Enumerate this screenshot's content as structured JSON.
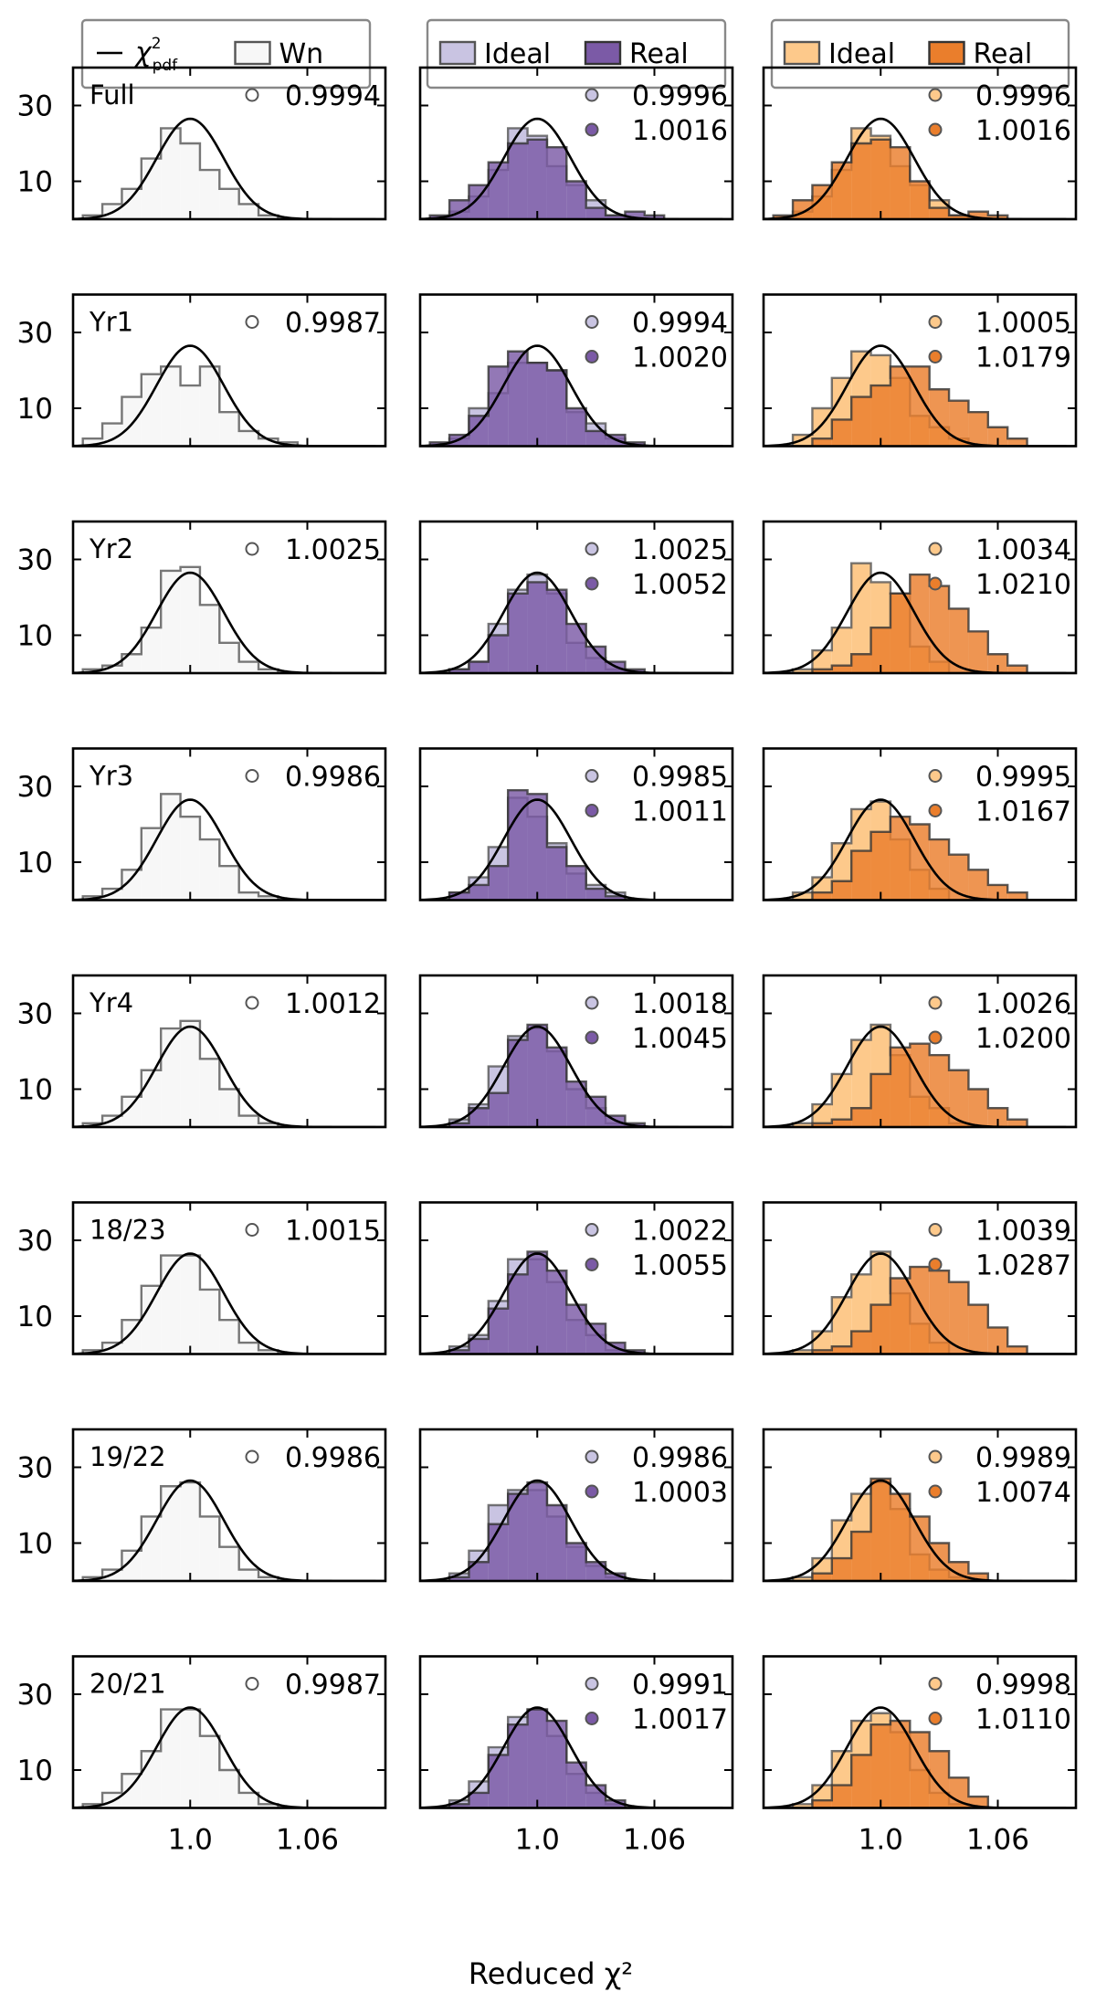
{
  "chart_data": {
    "type": "histogram-grid",
    "xlabel": "Reduced χ²",
    "xticks": [
      "1.0",
      "1.06"
    ],
    "xtick_values": [
      1.0,
      1.06
    ],
    "xlim": [
      0.94,
      1.1
    ],
    "yticks": [
      "10",
      "30"
    ],
    "ytick_values": [
      10,
      30
    ],
    "ylim": [
      0,
      40
    ],
    "bins": [
      0.95,
      0.96,
      0.97,
      0.98,
      0.99,
      1.0,
      1.01,
      1.02,
      1.03,
      1.04,
      1.05,
      1.06,
      1.07,
      1.08,
      1.09
    ],
    "legends": [
      {
        "items": [
          {
            "symbol": "line",
            "label": "χ",
            "label_sup": "2",
            "label_sub": "pdf"
          },
          {
            "symbol": "box",
            "label": "Wn",
            "fill": "#f7f7f7",
            "edge": "#555555"
          }
        ]
      },
      {
        "items": [
          {
            "symbol": "box",
            "label": "Ideal",
            "fill": "#c9c4e2",
            "edge": "#555555"
          },
          {
            "symbol": "box",
            "label": "Real",
            "fill": "#7b5aa6",
            "edge": "#333333"
          }
        ]
      },
      {
        "items": [
          {
            "symbol": "box",
            "label": "Ideal",
            "fill": "#fdc98b",
            "edge": "#555555"
          },
          {
            "symbol": "box",
            "label": "Real",
            "fill": "#ea7e2c",
            "edge": "#333333"
          }
        ]
      }
    ],
    "colors": {
      "curve": "#000000",
      "wn_fill": "#f7f7f7",
      "wn_edge": "#555555",
      "purple_ideal": "#c9c4e2",
      "purple_real": "#7b5aa6",
      "orange_ideal": "#fdc98b",
      "orange_real": "#ea7e2c",
      "wn_marker": "#ffffff"
    },
    "rows": [
      {
        "label": "Full",
        "wn": {
          "value": "0.9994",
          "counts": [
            1,
            4,
            8,
            16,
            24,
            20,
            13,
            8,
            4,
            1,
            0,
            0,
            0,
            0,
            0
          ]
        },
        "purple": {
          "ideal": {
            "value": "0.9996",
            "counts": [
              0,
              2,
              6,
              13,
              24,
              22,
              14,
              9,
              5,
              1,
              0,
              0,
              0,
              0,
              0
            ]
          },
          "real": {
            "value": "1.0016",
            "counts": [
              1,
              5,
              9,
              15,
              20,
              21,
              19,
              10,
              3,
              1,
              2,
              1,
              0,
              0,
              0
            ]
          }
        },
        "orange": {
          "ideal": {
            "value": "0.9996",
            "counts": [
              0,
              2,
              6,
              13,
              24,
              22,
              14,
              9,
              5,
              1,
              0,
              0,
              0,
              0,
              0
            ]
          },
          "real": {
            "value": "1.0016",
            "counts": [
              1,
              5,
              9,
              15,
              20,
              21,
              19,
              10,
              3,
              1,
              2,
              1,
              0,
              0,
              0
            ]
          }
        }
      },
      {
        "label": "Yr1",
        "wn": {
          "value": "0.9987",
          "counts": [
            2,
            6,
            13,
            19,
            21,
            16,
            21,
            9,
            4,
            2,
            1,
            0,
            0,
            0,
            0
          ]
        },
        "purple": {
          "ideal": {
            "value": "0.9994",
            "counts": [
              0,
              2,
              10,
              14,
              22,
              22,
              20,
              9,
              6,
              2,
              0,
              0,
              0,
              0,
              0
            ]
          },
          "real": {
            "value": "1.0020",
            "counts": [
              1,
              3,
              8,
              21,
              25,
              22,
              20,
              10,
              4,
              3,
              1,
              0,
              0,
              0,
              0
            ]
          }
        },
        "orange": {
          "ideal": {
            "value": "1.0005",
            "counts": [
              0,
              3,
              10,
              18,
              25,
              24,
              18,
              8,
              5,
              2,
              0,
              0,
              0,
              0,
              0
            ]
          },
          "real": {
            "value": "1.0179",
            "counts": [
              0,
              0,
              2,
              7,
              13,
              16,
              21,
              21,
              15,
              12,
              9,
              5,
              2,
              0,
              0
            ]
          }
        }
      },
      {
        "label": "Yr2",
        "wn": {
          "value": "1.0025",
          "counts": [
            1,
            2,
            5,
            12,
            27,
            28,
            18,
            8,
            3,
            1,
            0,
            0,
            0,
            0,
            0
          ]
        },
        "purple": {
          "ideal": {
            "value": "1.0025",
            "counts": [
              0,
              1,
              3,
              13,
              22,
              26,
              21,
              8,
              4,
              1,
              0,
              0,
              0,
              0,
              0
            ]
          },
          "real": {
            "value": "1.0052",
            "counts": [
              0,
              1,
              3,
              10,
              21,
              24,
              22,
              13,
              7,
              3,
              1,
              0,
              0,
              0,
              0
            ]
          }
        },
        "orange": {
          "ideal": {
            "value": "1.0034",
            "counts": [
              0,
              1,
              6,
              12,
              29,
              24,
              21,
              7,
              3,
              0,
              0,
              0,
              0,
              0,
              0
            ]
          },
          "real": {
            "value": "1.0210",
            "counts": [
              0,
              0,
              1,
              2,
              5,
              12,
              21,
              26,
              23,
              17,
              11,
              5,
              2,
              0,
              0
            ]
          }
        }
      },
      {
        "label": "Yr3",
        "wn": {
          "value": "0.9986",
          "counts": [
            1,
            3,
            8,
            19,
            28,
            22,
            16,
            9,
            2,
            1,
            0,
            0,
            0,
            0,
            0
          ]
        },
        "purple": {
          "ideal": {
            "value": "0.9985",
            "counts": [
              0,
              2,
              6,
              14,
              27,
              22,
              15,
              7,
              4,
              2,
              0,
              0,
              0,
              0,
              0
            ]
          },
          "real": {
            "value": "1.0011",
            "counts": [
              0,
              2,
              4,
              9,
              29,
              28,
              14,
              9,
              3,
              1,
              0,
              0,
              0,
              0,
              0
            ]
          }
        },
        "orange": {
          "ideal": {
            "value": "0.9995",
            "counts": [
              0,
              2,
              6,
              15,
              24,
              26,
              16,
              8,
              3,
              0,
              0,
              0,
              0,
              0,
              0
            ]
          },
          "real": {
            "value": "1.0167",
            "counts": [
              0,
              0,
              2,
              5,
              13,
              18,
              22,
              20,
              16,
              12,
              8,
              4,
              2,
              0,
              0
            ]
          }
        }
      },
      {
        "label": "Yr4",
        "wn": {
          "value": "1.0012",
          "counts": [
            1,
            3,
            8,
            15,
            26,
            28,
            18,
            10,
            3,
            1,
            0,
            0,
            0,
            0,
            0
          ]
        },
        "purple": {
          "ideal": {
            "value": "1.0018",
            "counts": [
              0,
              2,
              6,
              16,
              24,
              26,
              20,
              10,
              5,
              1,
              0,
              0,
              0,
              0,
              0
            ]
          },
          "real": {
            "value": "1.0045",
            "counts": [
              0,
              1,
              5,
              9,
              23,
              27,
              21,
              12,
              8,
              3,
              1,
              0,
              0,
              0,
              0
            ]
          }
        },
        "orange": {
          "ideal": {
            "value": "1.0026",
            "counts": [
              0,
              1,
              6,
              14,
              23,
              27,
              19,
              8,
              5,
              1,
              0,
              0,
              0,
              0,
              0
            ]
          },
          "real": {
            "value": "1.0200",
            "counts": [
              0,
              0,
              1,
              2,
              5,
              14,
              21,
              22,
              19,
              15,
              10,
              5,
              2,
              0,
              0
            ]
          }
        }
      },
      {
        "label": "18/23",
        "wn": {
          "value": "1.0015",
          "counts": [
            1,
            3,
            9,
            18,
            26,
            26,
            17,
            9,
            3,
            1,
            0,
            0,
            0,
            0,
            0
          ]
        },
        "purple": {
          "ideal": {
            "value": "1.0022",
            "counts": [
              0,
              2,
              5,
              14,
              25,
              25,
              19,
              9,
              5,
              1,
              0,
              0,
              0,
              0,
              0
            ]
          },
          "real": {
            "value": "1.0055",
            "counts": [
              0,
              1,
              4,
              12,
              21,
              27,
              22,
              13,
              8,
              3,
              1,
              0,
              0,
              0,
              0
            ]
          }
        },
        "orange": {
          "ideal": {
            "value": "1.0039",
            "counts": [
              0,
              1,
              6,
              15,
              21,
              27,
              16,
              8,
              3,
              0,
              0,
              0,
              0,
              0,
              0
            ]
          },
          "real": {
            "value": "1.0287",
            "counts": [
              0,
              0,
              1,
              2,
              6,
              13,
              20,
              23,
              22,
              19,
              13,
              7,
              2,
              0,
              0
            ]
          }
        }
      },
      {
        "label": "19/22",
        "wn": {
          "value": "0.9986",
          "counts": [
            1,
            3,
            8,
            17,
            25,
            26,
            17,
            9,
            3,
            1,
            0,
            0,
            0,
            0,
            0
          ]
        },
        "purple": {
          "ideal": {
            "value": "0.9986",
            "counts": [
              0,
              2,
              8,
              20,
              24,
              24,
              17,
              9,
              4,
              1,
              0,
              0,
              0,
              0,
              0
            ]
          },
          "real": {
            "value": "1.0003",
            "counts": [
              0,
              1,
              5,
              15,
              23,
              26,
              20,
              10,
              5,
              2,
              0,
              0,
              0,
              0,
              0
            ]
          }
        },
        "orange": {
          "ideal": {
            "value": "0.9989",
            "counts": [
              0,
              1,
              6,
              16,
              23,
              26,
              19,
              7,
              3,
              1,
              0,
              0,
              0,
              0,
              0
            ]
          },
          "real": {
            "value": "1.0074",
            "counts": [
              0,
              0,
              2,
              6,
              13,
              27,
              23,
              17,
              10,
              5,
              2,
              0,
              0,
              0,
              0
            ]
          }
        }
      },
      {
        "label": "20/21",
        "wn": {
          "value": "0.9987",
          "counts": [
            1,
            4,
            9,
            15,
            26,
            26,
            19,
            10,
            4,
            1,
            0,
            0,
            0,
            0,
            0
          ]
        },
        "purple": {
          "ideal": {
            "value": "0.9991",
            "counts": [
              0,
              2,
              7,
              16,
              24,
              26,
              19,
              9,
              4,
              1,
              0,
              0,
              0,
              0,
              0
            ]
          },
          "real": {
            "value": "1.0017",
            "counts": [
              0,
              1,
              4,
              14,
              22,
              26,
              23,
              12,
              6,
              2,
              0,
              0,
              0,
              0,
              0
            ]
          }
        },
        "orange": {
          "ideal": {
            "value": "0.9998",
            "counts": [
              0,
              1,
              6,
              15,
              23,
              25,
              20,
              10,
              4,
              1,
              0,
              0,
              0,
              0,
              0
            ]
          },
          "real": {
            "value": "1.0110",
            "counts": [
              0,
              0,
              2,
              6,
              14,
              22,
              23,
              20,
              15,
              8,
              3,
              0,
              0,
              0,
              0
            ]
          }
        }
      }
    ]
  }
}
